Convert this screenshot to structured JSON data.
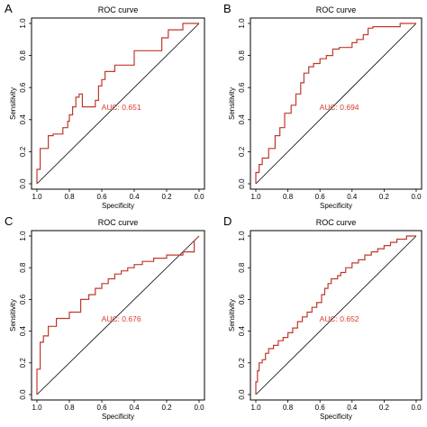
{
  "colors": {
    "curve": "#c0392b",
    "auc_text": "#d9392b",
    "frame": "#000000",
    "diagonal": "#000000"
  },
  "chart_data": [
    {
      "type": "line",
      "panel_label": "A",
      "title": "ROC curve",
      "xlabel": "Specificity",
      "ylabel": "Sensitivity",
      "xlim": [
        1.0,
        0.0
      ],
      "ylim": [
        0.0,
        1.0
      ],
      "x_axis_reversed": true,
      "x_ticks": [
        "1.0",
        "0.8",
        "0.6",
        "0.4",
        "0.2",
        "0.0"
      ],
      "y_ticks": [
        "0.0",
        "0.2",
        "0.4",
        "0.6",
        "0.8",
        "1.0"
      ],
      "grid": false,
      "legend": "none",
      "auc_label": "AUC: 0.651",
      "series": [
        {
          "x": [
            1.0,
            1.0,
            0.98,
            0.98,
            0.93,
            0.93,
            0.9,
            0.9,
            0.84,
            0.84,
            0.81,
            0.81,
            0.8,
            0.8,
            0.78,
            0.78,
            0.76,
            0.76,
            0.74,
            0.74,
            0.72,
            0.72,
            0.64,
            0.64,
            0.62,
            0.62,
            0.6,
            0.6,
            0.58,
            0.58,
            0.52,
            0.52,
            0.49,
            0.49,
            0.4,
            0.4,
            0.23,
            0.23,
            0.19,
            0.19,
            0.1,
            0.1,
            0.0
          ],
          "y": [
            0.0,
            0.09,
            0.09,
            0.22,
            0.22,
            0.3,
            0.3,
            0.31,
            0.31,
            0.35,
            0.35,
            0.39,
            0.39,
            0.43,
            0.43,
            0.48,
            0.48,
            0.54,
            0.54,
            0.56,
            0.56,
            0.48,
            0.48,
            0.52,
            0.52,
            0.61,
            0.61,
            0.65,
            0.65,
            0.7,
            0.7,
            0.74,
            0.74,
            0.74,
            0.74,
            0.83,
            0.83,
            0.91,
            0.91,
            0.96,
            0.96,
            1.0,
            1.0
          ]
        }
      ]
    },
    {
      "type": "line",
      "panel_label": "B",
      "title": "ROC curve",
      "xlabel": "Specificity",
      "ylabel": "Sensitivity",
      "xlim": [
        1.0,
        0.0
      ],
      "ylim": [
        0.0,
        1.0
      ],
      "x_axis_reversed": true,
      "x_ticks": [
        "1.0",
        "0.8",
        "0.6",
        "0.4",
        "0.2",
        "0.0"
      ],
      "y_ticks": [
        "0.0",
        "0.2",
        "0.4",
        "0.6",
        "0.8",
        "1.0"
      ],
      "grid": false,
      "legend": "none",
      "auc_label": "AUC: 0.694",
      "series": [
        {
          "x": [
            1.0,
            1.0,
            0.98,
            0.98,
            0.96,
            0.96,
            0.92,
            0.92,
            0.88,
            0.88,
            0.85,
            0.85,
            0.82,
            0.82,
            0.78,
            0.78,
            0.75,
            0.75,
            0.72,
            0.72,
            0.7,
            0.7,
            0.67,
            0.67,
            0.64,
            0.64,
            0.6,
            0.6,
            0.56,
            0.56,
            0.52,
            0.52,
            0.48,
            0.48,
            0.4,
            0.4,
            0.37,
            0.37,
            0.33,
            0.33,
            0.3,
            0.3,
            0.27,
            0.27,
            0.1,
            0.1,
            0.0
          ],
          "y": [
            0.0,
            0.07,
            0.07,
            0.12,
            0.12,
            0.16,
            0.16,
            0.22,
            0.22,
            0.3,
            0.3,
            0.35,
            0.35,
            0.44,
            0.44,
            0.49,
            0.49,
            0.56,
            0.56,
            0.63,
            0.63,
            0.69,
            0.69,
            0.73,
            0.73,
            0.75,
            0.75,
            0.78,
            0.78,
            0.8,
            0.8,
            0.84,
            0.84,
            0.85,
            0.85,
            0.88,
            0.88,
            0.9,
            0.9,
            0.93,
            0.93,
            0.97,
            0.97,
            0.98,
            0.98,
            1.0,
            1.0
          ]
        }
      ]
    },
    {
      "type": "line",
      "panel_label": "C",
      "title": "ROC curve",
      "xlabel": "Specificity",
      "ylabel": "Sensitivity",
      "xlim": [
        1.0,
        0.0
      ],
      "ylim": [
        0.0,
        1.0
      ],
      "x_axis_reversed": true,
      "x_ticks": [
        "1.0",
        "0.8",
        "0.6",
        "0.4",
        "0.2",
        "0.0"
      ],
      "y_ticks": [
        "0.0",
        "0.2",
        "0.4",
        "0.6",
        "0.8",
        "1.0"
      ],
      "grid": false,
      "legend": "none",
      "auc_label": "AUC: 0.676",
      "series": [
        {
          "x": [
            1.0,
            1.0,
            0.98,
            0.98,
            0.96,
            0.96,
            0.93,
            0.93,
            0.88,
            0.88,
            0.8,
            0.8,
            0.73,
            0.73,
            0.68,
            0.68,
            0.64,
            0.64,
            0.6,
            0.6,
            0.56,
            0.56,
            0.52,
            0.52,
            0.48,
            0.48,
            0.44,
            0.44,
            0.4,
            0.4,
            0.35,
            0.35,
            0.28,
            0.28,
            0.2,
            0.2,
            0.1,
            0.1,
            0.03,
            0.03,
            0.0
          ],
          "y": [
            0.0,
            0.16,
            0.16,
            0.33,
            0.33,
            0.37,
            0.37,
            0.43,
            0.43,
            0.48,
            0.48,
            0.52,
            0.52,
            0.6,
            0.6,
            0.63,
            0.63,
            0.67,
            0.67,
            0.7,
            0.7,
            0.73,
            0.73,
            0.76,
            0.76,
            0.78,
            0.78,
            0.8,
            0.8,
            0.82,
            0.82,
            0.84,
            0.84,
            0.86,
            0.86,
            0.88,
            0.88,
            0.9,
            0.9,
            0.97,
            1.0
          ]
        }
      ]
    },
    {
      "type": "line",
      "panel_label": "D",
      "title": "ROC curve",
      "xlabel": "Specificity",
      "ylabel": "Sensitivity",
      "xlim": [
        1.0,
        0.0
      ],
      "ylim": [
        0.0,
        1.0
      ],
      "x_axis_reversed": true,
      "x_ticks": [
        "1.0",
        "0.8",
        "0.6",
        "0.4",
        "0.2",
        "0.0"
      ],
      "y_ticks": [
        "0.0",
        "0.2",
        "0.4",
        "0.6",
        "0.8",
        "1.0"
      ],
      "grid": false,
      "legend": "none",
      "auc_label": "AUC: 0.652",
      "series": [
        {
          "x": [
            1.0,
            1.0,
            0.99,
            0.99,
            0.98,
            0.98,
            0.96,
            0.96,
            0.94,
            0.94,
            0.92,
            0.92,
            0.89,
            0.89,
            0.86,
            0.86,
            0.83,
            0.83,
            0.8,
            0.8,
            0.77,
            0.77,
            0.74,
            0.74,
            0.71,
            0.71,
            0.68,
            0.68,
            0.65,
            0.65,
            0.62,
            0.62,
            0.59,
            0.59,
            0.57,
            0.57,
            0.55,
            0.55,
            0.53,
            0.53,
            0.51,
            0.51,
            0.49,
            0.49,
            0.47,
            0.47,
            0.44,
            0.44,
            0.4,
            0.4,
            0.36,
            0.36,
            0.32,
            0.32,
            0.28,
            0.28,
            0.24,
            0.24,
            0.2,
            0.2,
            0.16,
            0.16,
            0.12,
            0.12,
            0.06,
            0.06,
            0.0
          ],
          "y": [
            0.0,
            0.08,
            0.08,
            0.15,
            0.15,
            0.2,
            0.2,
            0.22,
            0.22,
            0.26,
            0.26,
            0.29,
            0.29,
            0.31,
            0.31,
            0.34,
            0.34,
            0.36,
            0.36,
            0.39,
            0.39,
            0.42,
            0.42,
            0.46,
            0.46,
            0.49,
            0.49,
            0.52,
            0.52,
            0.55,
            0.55,
            0.58,
            0.58,
            0.63,
            0.63,
            0.67,
            0.67,
            0.7,
            0.7,
            0.73,
            0.73,
            0.73,
            0.73,
            0.75,
            0.75,
            0.77,
            0.77,
            0.8,
            0.8,
            0.83,
            0.83,
            0.85,
            0.85,
            0.88,
            0.88,
            0.9,
            0.9,
            0.92,
            0.92,
            0.94,
            0.94,
            0.96,
            0.96,
            0.98,
            0.98,
            1.0,
            1.0
          ]
        }
      ]
    }
  ]
}
